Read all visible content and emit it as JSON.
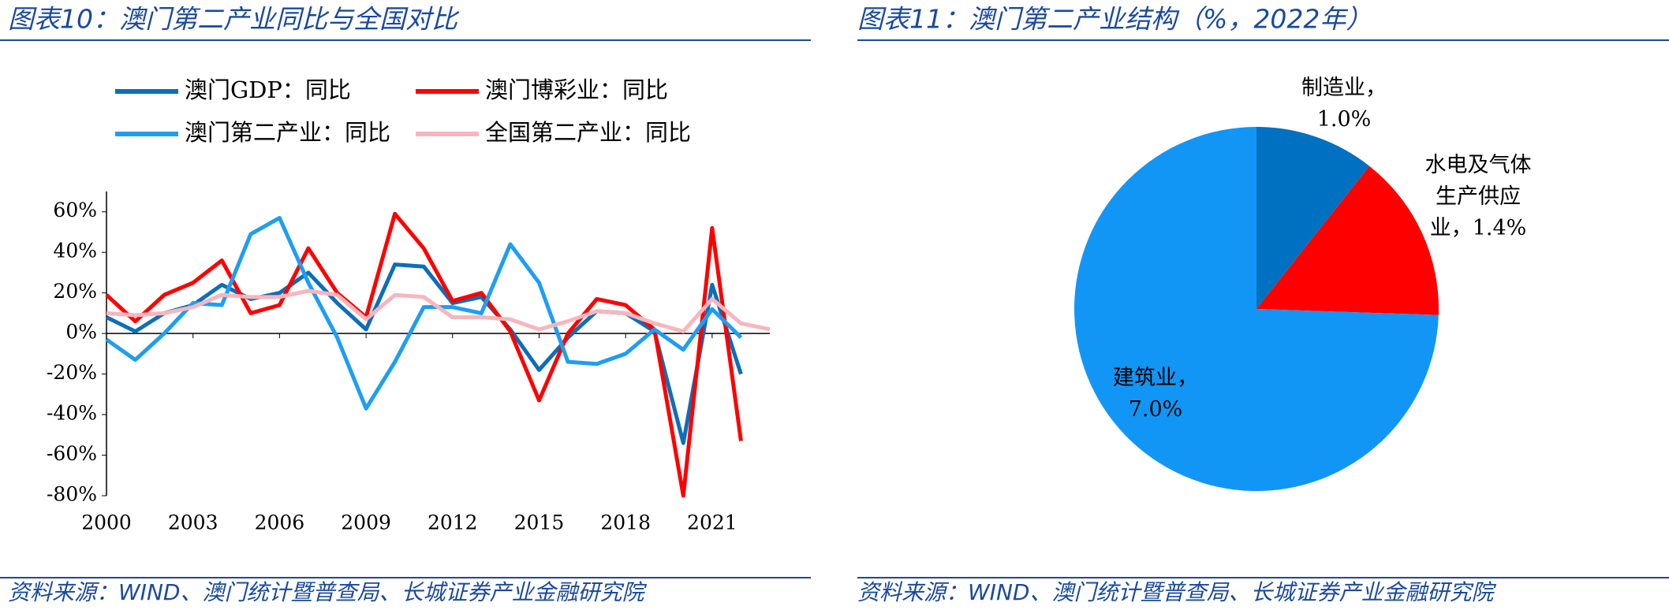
{
  "panels": [
    {
      "header": "图表10：澳门第二产业同比与全国对比",
      "source": "资料来源：WIND、澳门统计暨普查局、长城证券产业金融研究院",
      "chart_data": {
        "type": "line",
        "x": [
          2000,
          2001,
          2002,
          2003,
          2004,
          2005,
          2006,
          2007,
          2008,
          2009,
          2010,
          2011,
          2012,
          2013,
          2014,
          2015,
          2016,
          2017,
          2018,
          2019,
          2020,
          2021,
          2022,
          2023
        ],
        "xlim": [
          2000,
          2023
        ],
        "xticks": [
          2000,
          2003,
          2006,
          2009,
          2012,
          2015,
          2018,
          2021
        ],
        "ylim": [
          -80,
          70
        ],
        "yticks": [
          {
            "value": -80,
            "label": "-80%"
          },
          {
            "value": -60,
            "label": "-60%"
          },
          {
            "value": -40,
            "label": "-40%"
          },
          {
            "value": -20,
            "label": "-20%"
          },
          {
            "value": 0,
            "label": "0%"
          },
          {
            "value": 20,
            "label": "20%"
          },
          {
            "value": 40,
            "label": "40%"
          },
          {
            "value": 60,
            "label": "60%"
          }
        ],
        "series": [
          {
            "name": "澳门GDP：同比",
            "color": "#0e6eb8",
            "values": [
              8,
              1,
              10,
              14,
              24,
              17,
              20,
              30,
              15,
              2,
              34,
              33,
              15,
              18,
              2,
              -18,
              -2,
              11,
              10,
              1,
              -54,
              24,
              -20,
              null
            ]
          },
          {
            "name": "澳门博彩业：同比",
            "color": "#ff0000",
            "values": [
              19,
              6,
              19,
              25,
              36,
              10,
              14,
              42,
              20,
              8,
              59,
              42,
              16,
              20,
              1,
              -33,
              0,
              17,
              14,
              2,
              -80,
              52,
              -53,
              null
            ]
          },
          {
            "name": "澳门第二产业：同比",
            "color": "#1e9ef2",
            "values": [
              -3,
              -13,
              0,
              15,
              14,
              49,
              57,
              25,
              -2,
              -37,
              -14,
              13,
              13,
              10,
              44,
              25,
              -14,
              -15,
              -10,
              2,
              -8,
              12,
              -2,
              null
            ]
          },
          {
            "name": "全国第二产业：同比",
            "color": "#f7b6bd",
            "values": [
              10,
              9,
              10,
              13,
              19,
              18,
              18,
              21,
              19,
              7,
              19,
              18,
              8,
              8,
              7,
              2,
              6,
              11,
              10,
              5,
              1,
              17,
              5,
              2
            ]
          }
        ]
      }
    },
    {
      "header": "图表11：澳门第二产业结构（%，2022年）",
      "source": "资料来源：WIND、澳门统计暨普查局、长城证券产业金融研究院",
      "chart_data": {
        "type": "pie",
        "categories": [
          "制造业，",
          "水电及气体生产供应业，",
          "建筑业，"
        ],
        "values": [
          1.0,
          1.4,
          7.0
        ],
        "value_labels": [
          "1.0%",
          "1.4%",
          "7.0%"
        ],
        "colors": [
          "#0070c0",
          "#ff0000",
          "#1296f5"
        ]
      }
    }
  ]
}
